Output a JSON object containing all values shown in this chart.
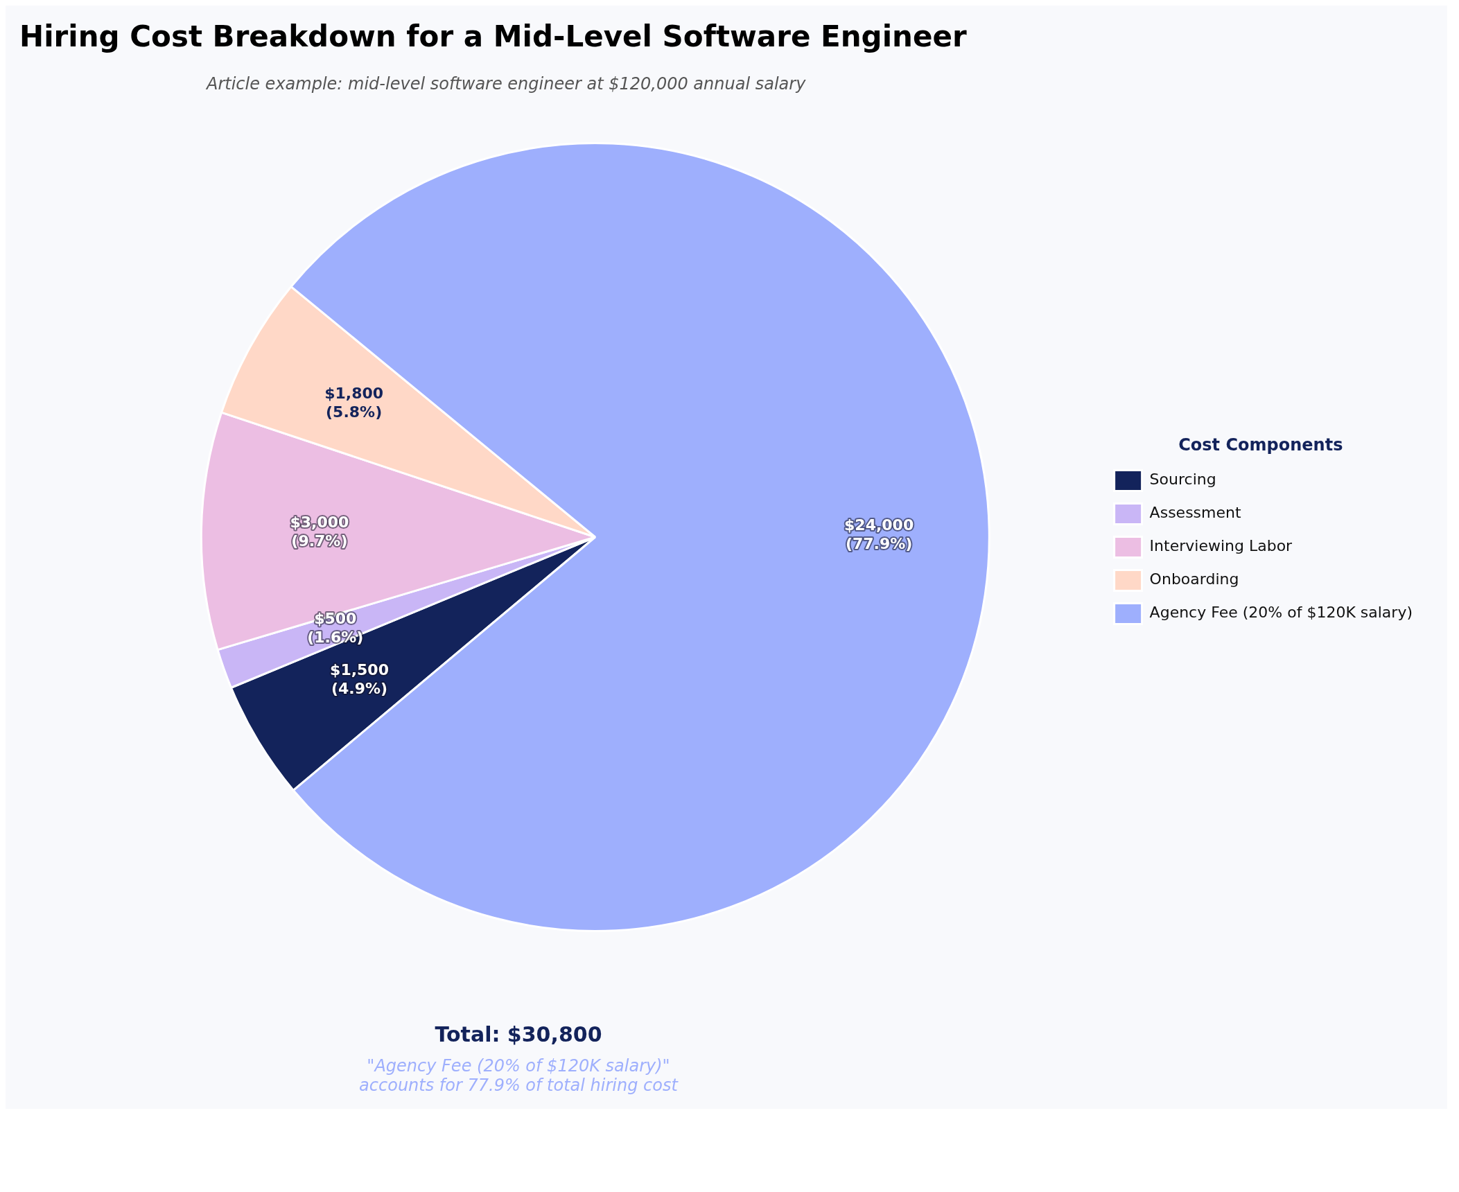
{
  "chart_data": {
    "type": "pie",
    "title": "Hiring Cost Breakdown for a Mid-Level Software Engineer",
    "subtitle": "Article example: mid-level software engineer at $120,000 annual salary",
    "legend_title": "Cost Components",
    "legend": "right",
    "categories": [
      "Sourcing",
      "Assessment",
      "Interviewing Labor",
      "Onboarding",
      "Agency Fee (20% of $120K salary)"
    ],
    "values": [
      1500,
      500,
      3000,
      1800,
      24000
    ],
    "colors": [
      "#13235b",
      "#c9b6f6",
      "#ecbee3",
      "#ffd8c7",
      "#9eaffd"
    ],
    "value_labels": [
      "$1,500\n(4.9%)",
      "$500\n(1.6%)",
      "$3,000\n(9.7%)",
      "$1,800\n(5.8%)",
      "$24,000\n(77.9%)"
    ],
    "annotations": [
      "Total: $30,800",
      "\"Agency Fee (20% of $120K salary)\"\naccounts for 77.9% of total hiring cost"
    ]
  }
}
